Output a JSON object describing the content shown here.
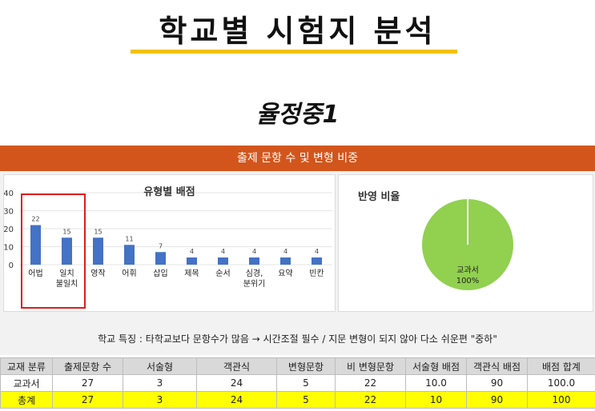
{
  "page": {
    "title": "학교별 시험지 분석",
    "school": "율정중1"
  },
  "panel": {
    "header": "출제 문항 수 및 변형 비중",
    "bar_title": "유형별 배점",
    "pie_title": "반영 비율",
    "feature_note": "학교 특징 : 타학교보다 문항수가 많음 → 시간조절 필수 / 지문 변형이 되지 않아 다소 쉬운편 \"중하\""
  },
  "colors": {
    "accent": "#d2561c",
    "bar": "#4472c4",
    "pie": "#92d050",
    "underline": "#f2c200",
    "highlight": "#e01b1b",
    "total_row": "#ffff00"
  },
  "chart_data": [
    {
      "type": "bar",
      "title": "유형별 배점",
      "categories": [
        "어법",
        "일치\n불일치",
        "영작",
        "어휘",
        "삽입",
        "제목",
        "순서",
        "심경,\n분위기",
        "요약",
        "빈칸"
      ],
      "values": [
        22,
        15,
        15,
        11,
        7,
        4,
        4,
        4,
        4,
        4
      ],
      "ylim": [
        0,
        40
      ],
      "yticks": [
        0,
        10,
        20,
        30,
        40
      ],
      "data_labels": true,
      "grid": true,
      "highlighted_categories": [
        "어법",
        "일치\n불일치"
      ]
    },
    {
      "type": "pie",
      "title": "반영 비율",
      "slices": [
        {
          "label": "교과서",
          "value": 100,
          "label_text": "교과서\n100%"
        }
      ]
    }
  ],
  "table": {
    "headers": [
      "교재 분류",
      "출제문항 수",
      "서술형",
      "객관식",
      "변형문항",
      "비 변형문항",
      "서술형 배점",
      "객관식 배점",
      "배점 합계"
    ],
    "rows": [
      [
        "교과서",
        "27",
        "3",
        "24",
        "5",
        "22",
        "10.0",
        "90",
        "100.0"
      ],
      [
        "총계",
        "27",
        "3",
        "24",
        "5",
        "22",
        "10",
        "90",
        "100"
      ]
    ]
  }
}
